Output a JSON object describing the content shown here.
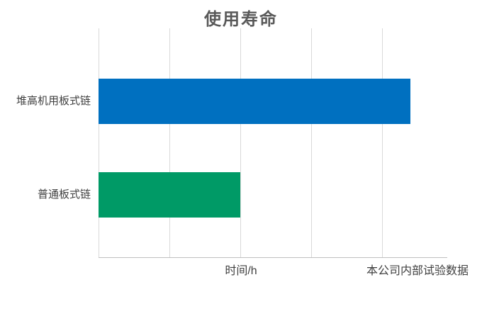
{
  "chart_data": {
    "type": "bar",
    "orientation": "horizontal",
    "title": "使用寿命",
    "categories": [
      "堆高机用板式链",
      "普通板式链"
    ],
    "values": [
      4.4,
      2.0
    ],
    "value_note": "no numeric tick labels shown on axis; values estimated in gridline units",
    "xlabel": "时间/h",
    "ylabel": "",
    "footnote": "本公司内部试验数据",
    "xlim": [
      0,
      4.92
    ],
    "gridline_interval": 1,
    "gridlines": "vertical-only",
    "legend": "none",
    "bar_colors": [
      "#0070C0",
      "#009A66"
    ]
  },
  "style_colors": {
    "background": "#ffffff",
    "gridline": "#d9d9d9",
    "axis_line": "#bfbfbf",
    "title_text": "#595959",
    "label_text": "#404040"
  }
}
